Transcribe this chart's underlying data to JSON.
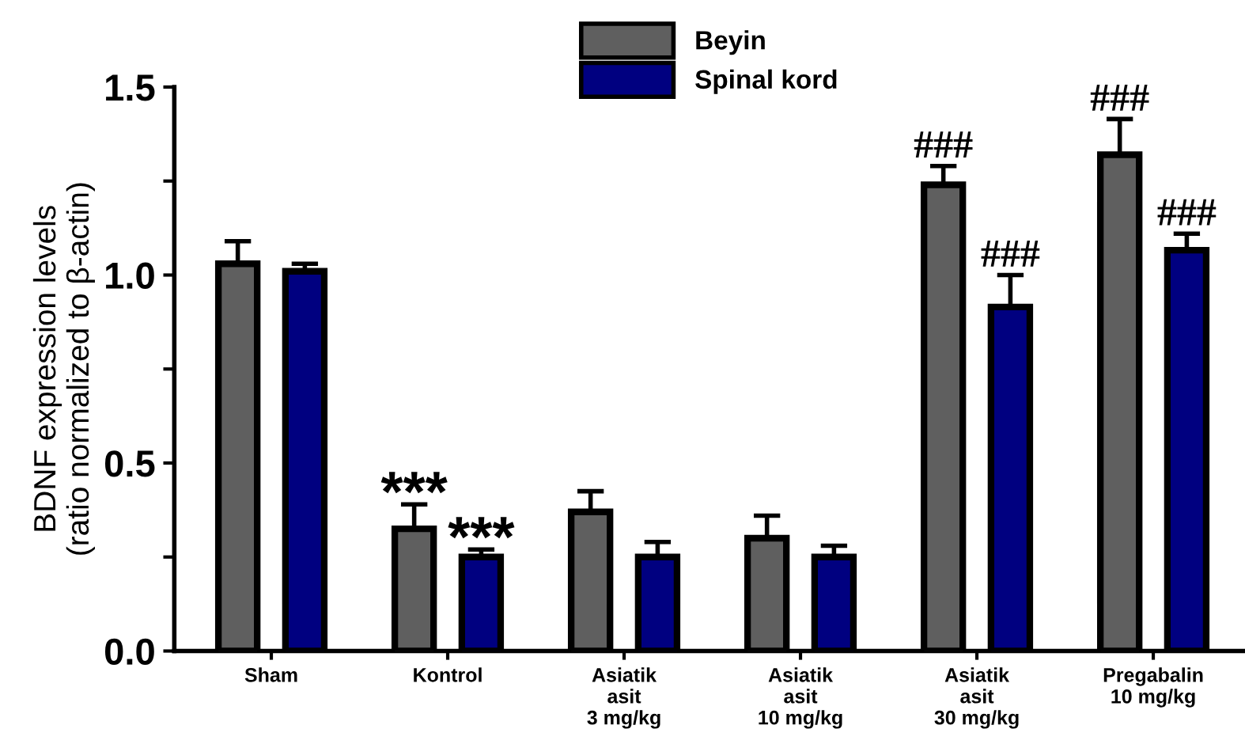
{
  "chart_data": {
    "type": "bar",
    "ylabel": "BDNF expression levels\n(ratio normalized to β-actin)",
    "categories": [
      "Sham",
      "Kontrol",
      "Asiatik\nasit\n3 mg/kg",
      "Asiatik\nasit\n10 mg/kg",
      "Asiatik\nasit\n30 mg/kg",
      "Pregabalin\n10 mg/kg"
    ],
    "series": [
      {
        "name": "Beyin",
        "color": "#5f5f5f",
        "values": [
          1.03,
          0.325,
          0.37,
          0.3,
          1.24,
          1.32
        ],
        "errors": [
          [
            1.03,
            1.09
          ],
          [
            0.325,
            0.39
          ],
          [
            0.37,
            0.425
          ],
          [
            0.3,
            0.36
          ],
          [
            1.24,
            1.29
          ],
          [
            1.32,
            1.415
          ]
        ]
      },
      {
        "name": "Spinal kord",
        "color": "#000080",
        "values": [
          1.01,
          0.25,
          0.25,
          0.25,
          0.915,
          1.066
        ],
        "errors": [
          [
            1.01,
            1.03
          ],
          [
            0.25,
            0.27
          ],
          [
            0.25,
            0.29
          ],
          [
            0.25,
            0.28
          ],
          [
            0.915,
            1.0
          ],
          [
            1.066,
            1.11
          ]
        ]
      }
    ],
    "ylim": [
      0,
      1.5
    ],
    "yticks": [
      {
        "value": 0,
        "label": "0.0"
      },
      {
        "value": 0.25,
        "label": null
      },
      {
        "value": 0.5,
        "label": "0.5"
      },
      {
        "value": 0.75,
        "label": null
      },
      {
        "value": 1.0,
        "label": "1.0"
      },
      {
        "value": 1.25,
        "label": null
      },
      {
        "value": 1.5,
        "label": "1.5"
      }
    ],
    "annotations": [
      "***",
      "***",
      "###",
      "###",
      "###",
      "###"
    ],
    "grid": false,
    "legend": "top"
  }
}
